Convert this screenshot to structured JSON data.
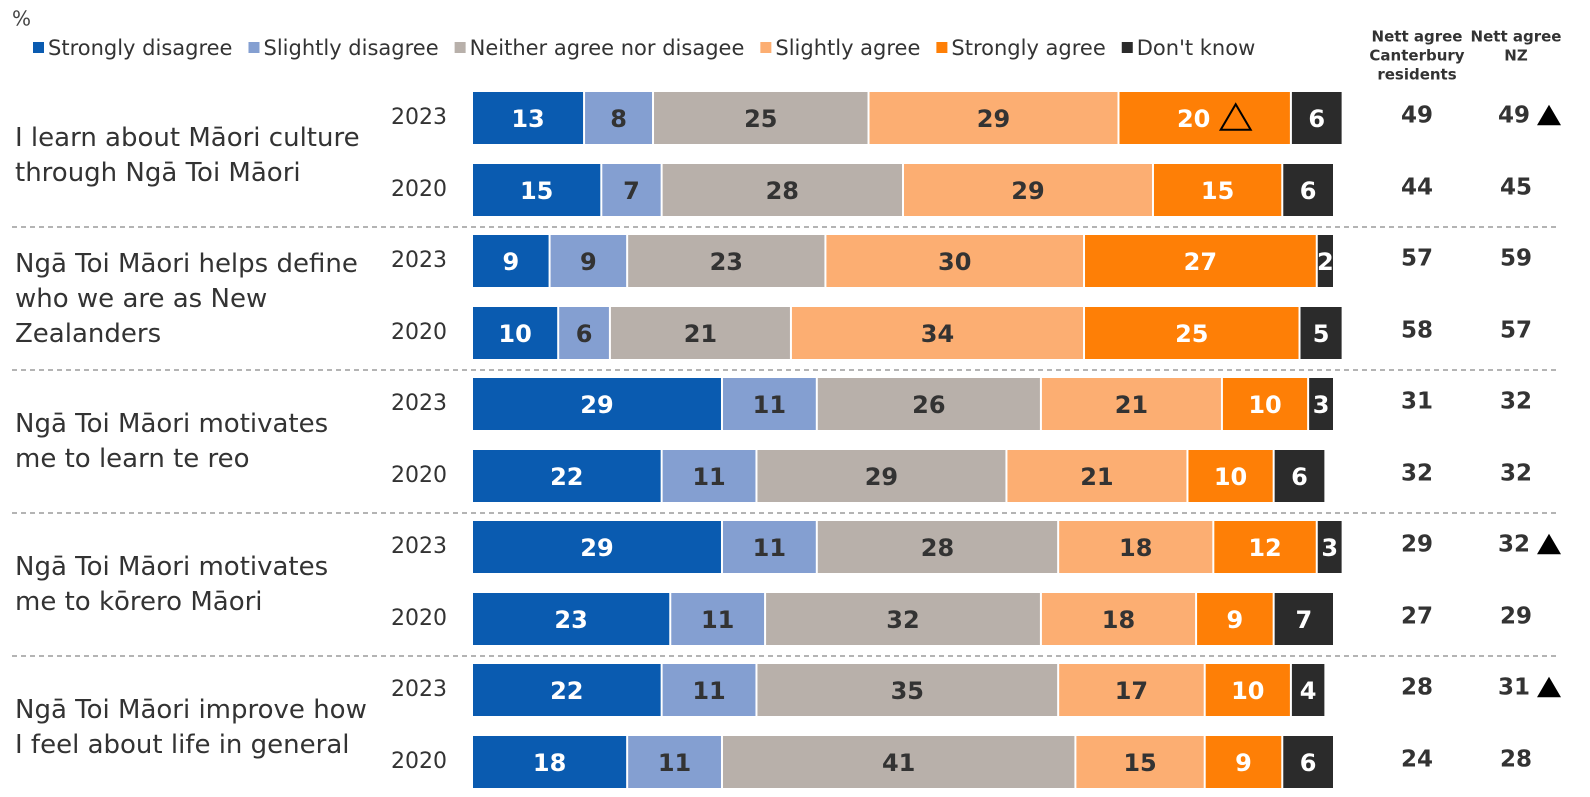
{
  "chart_data": {
    "type": "stacked_bar",
    "unit": "%",
    "statements": [
      "I learn about Māori culture through Ngā Toi Māori",
      "Ngā Toi Māori helps define who we are as New Zealanders",
      "Ngā Toi Māori motivates me to learn te reo",
      "Ngā Toi Māori motivates me to kōrero Māori",
      "Ngā Toi Māori improve how I feel about life in general"
    ],
    "categories": [
      "2023",
      "2020",
      "2023",
      "2020",
      "2023",
      "2020",
      "2023",
      "2020",
      "2023",
      "2020"
    ],
    "series": [
      {
        "name": "Strongly disagree",
        "color": "#0a5bb0",
        "values": [
          13,
          15,
          9,
          10,
          29,
          22,
          29,
          23,
          22,
          18
        ]
      },
      {
        "name": "Slightly disagree",
        "color": "#849fd1",
        "values": [
          8,
          7,
          9,
          6,
          11,
          11,
          11,
          11,
          11,
          11
        ]
      },
      {
        "name": "Neither agree nor disagee",
        "color": "#b8b0aa",
        "values": [
          25,
          28,
          23,
          21,
          26,
          29,
          28,
          32,
          35,
          41
        ]
      },
      {
        "name": "Slightly agree",
        "color": "#fcae72",
        "values": [
          29,
          29,
          30,
          34,
          21,
          21,
          18,
          18,
          17,
          15
        ]
      },
      {
        "name": "Strongly agree",
        "color": "#fe7f06",
        "values": [
          20,
          15,
          27,
          25,
          10,
          10,
          12,
          9,
          10,
          9
        ],
        "markers": [
          true,
          false,
          false,
          false,
          false,
          false,
          false,
          false,
          false,
          false
        ]
      },
      {
        "name": "Don't know",
        "color": "#2b2b2b",
        "values": [
          6,
          6,
          2,
          5,
          3,
          6,
          3,
          7,
          4,
          6
        ]
      }
    ],
    "nett_columns": [
      {
        "name": [
          "Nett agree",
          "Canterbury",
          "residents"
        ],
        "values": [
          49,
          44,
          57,
          58,
          31,
          32,
          29,
          27,
          28,
          24
        ]
      },
      {
        "name": [
          "Nett agree",
          "NZ"
        ],
        "values": [
          49,
          45,
          59,
          57,
          32,
          32,
          32,
          29,
          31,
          28
        ],
        "markers": [
          true,
          false,
          false,
          false,
          false,
          false,
          true,
          false,
          true,
          false
        ]
      }
    ]
  }
}
